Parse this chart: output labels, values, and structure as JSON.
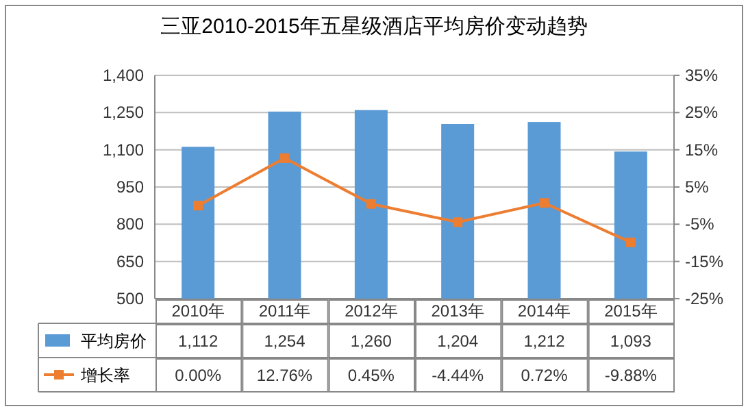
{
  "chart_data": {
    "type": "bar",
    "title": "三亚2010-2015年五星级酒店平均房价变动趋势",
    "categories": [
      "2010年",
      "2011年",
      "2012年",
      "2013年",
      "2014年",
      "2015年"
    ],
    "series": [
      {
        "name": "平均房价",
        "color": "#5b9bd5",
        "values": [
          1112,
          1254,
          1260,
          1204,
          1212,
          1093
        ],
        "value_labels": [
          "1,112",
          "1,254",
          "1,260",
          "1,204",
          "1,212",
          "1,093"
        ]
      },
      {
        "name": "增长率",
        "type": "line",
        "axis": "y2",
        "color": "#ed7d31",
        "marker": "square",
        "values": [
          0.0,
          12.76,
          0.45,
          -4.44,
          0.72,
          -9.88
        ],
        "value_labels": [
          "0.00%",
          "12.76%",
          "0.45%",
          "-4.44%",
          "0.72%",
          "-9.88%"
        ]
      }
    ],
    "ylim": [
      500,
      1400
    ],
    "yticks": [
      500,
      650,
      800,
      950,
      {
        "value": 1100,
        "label": "1,100"
      },
      {
        "value": 1250,
        "label": "1,250"
      },
      {
        "value": 1400,
        "label": "1,400"
      }
    ],
    "y2lim": [
      -25,
      35
    ],
    "y2ticks": [
      {
        "value": -25,
        "label": "-25%"
      },
      {
        "value": -15,
        "label": "-15%"
      },
      {
        "value": -5,
        "label": "-5%"
      },
      {
        "value": 5,
        "label": "5%"
      },
      {
        "value": 15,
        "label": "15%"
      },
      {
        "value": 25,
        "label": "25%"
      },
      {
        "value": 35,
        "label": "35%"
      }
    ],
    "grid": "y",
    "legend": "bottom"
  }
}
